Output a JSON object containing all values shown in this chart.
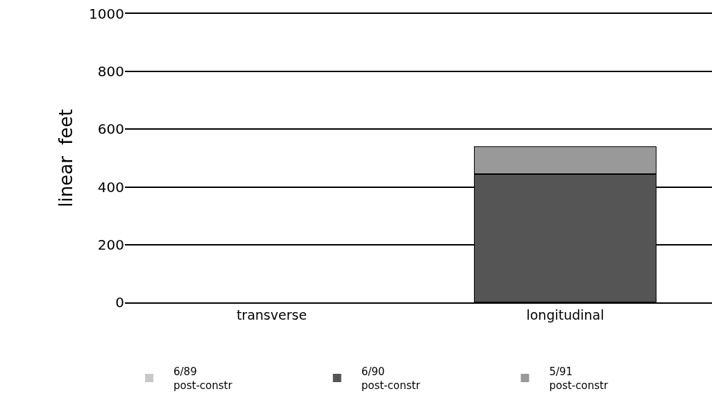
{
  "chart_data": {
    "type": "bar",
    "stacked": true,
    "ylabel": "linear  feet",
    "categories": [
      "transverse",
      "longitudinal"
    ],
    "series": [
      {
        "name": "6/89\npost-constr",
        "color": "#c8c8c8",
        "values": [
          0,
          0
        ]
      },
      {
        "name": "6/90\npost-constr",
        "color": "#555555",
        "values": [
          0,
          445
        ]
      },
      {
        "name": "5/91\npost-constr",
        "color": "#999999",
        "values": [
          0,
          95
        ]
      }
    ],
    "ylim": [
      0,
      1000
    ],
    "yticks": [
      0,
      200,
      400,
      600,
      800,
      1000
    ],
    "grid": "y",
    "legend": "bottom"
  }
}
